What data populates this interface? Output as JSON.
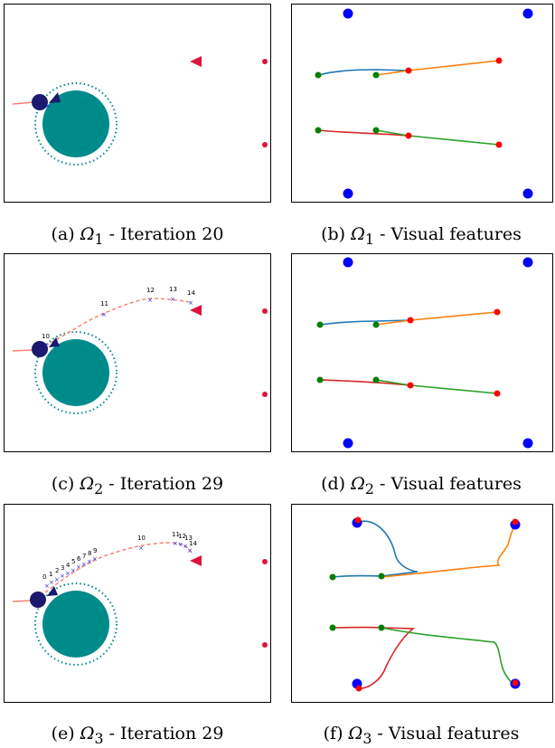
{
  "panels": [
    {
      "id": "a",
      "caption": {
        "letter": "(a)",
        "domain": "Ω",
        "sub": "1",
        "rest": " - Iteration 20"
      }
    },
    {
      "id": "b",
      "caption": {
        "letter": "(b)",
        "domain": "Ω",
        "sub": "1",
        "rest": " - Visual features"
      }
    },
    {
      "id": "c",
      "caption": {
        "letter": "(c)",
        "domain": "Ω",
        "sub": "2",
        "rest": " - Iteration 29"
      },
      "waypoint_labels": [
        "10",
        "11",
        "12",
        "13",
        "14"
      ]
    },
    {
      "id": "d",
      "caption": {
        "letter": "(d)",
        "domain": "Ω",
        "sub": "2",
        "rest": " - Visual features"
      }
    },
    {
      "id": "e",
      "caption": {
        "letter": "(e)",
        "domain": "Ω",
        "sub": "3",
        "rest": " - Iteration 29"
      },
      "waypoint_labels": [
        "0",
        "1",
        "2",
        "3",
        "4",
        "5",
        "6",
        "7",
        "8",
        "9",
        "10",
        "11",
        "12",
        "13",
        "14"
      ]
    },
    {
      "id": "f",
      "caption": {
        "letter": "(f)",
        "domain": "Ω",
        "sub": "3",
        "rest": " - Visual features"
      }
    }
  ],
  "colors": {
    "obstacle": "#008b8b",
    "robot": "#1a1a6e",
    "goal": "#dc143c",
    "trajectory": "#fa8072",
    "waypoint": "#1f1fe0",
    "feature_blue": "#1f77b4",
    "feature_orange": "#ff7f0e",
    "feature_green": "#2ca02c",
    "feature_red": "#d62728",
    "target_point": "#0000ff",
    "current_point": "#ff0000",
    "start_point": "#008000"
  }
}
